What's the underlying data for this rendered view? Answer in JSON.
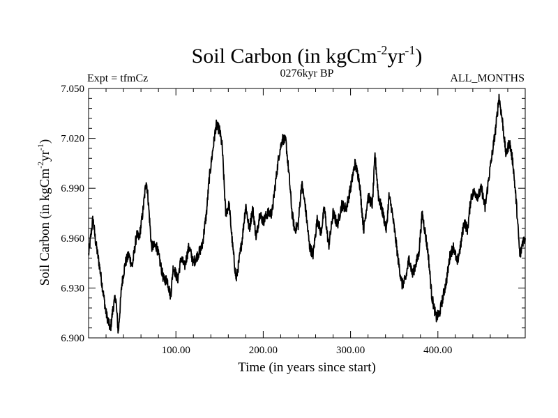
{
  "chart_data": {
    "type": "line",
    "title": "Soil Carbon (in kgCm",
    "title_sup1": "-2",
    "title_mid": "yr",
    "title_sup2": "-1",
    "title_end": ")",
    "subtitle_left": "Expt = tfmCz",
    "subtitle_center": "0276kyr BP",
    "subtitle_right": "ALL_MONTHS",
    "xlabel": "Time (in years since start)",
    "ylabel": "Soil Carbon (in kgCm",
    "ylabel_sup1": "-2",
    "ylabel_mid": "yr",
    "ylabel_sup2": "-1",
    "ylabel_end": ")",
    "xlim": [
      0,
      500
    ],
    "ylim": [
      6.9,
      7.05
    ],
    "x_ticks": [
      100,
      200,
      300,
      400
    ],
    "x_tick_labels": [
      "100.00",
      "200.00",
      "300.00",
      "400.00"
    ],
    "y_ticks": [
      6.9,
      6.93,
      6.96,
      6.99,
      7.02,
      7.05
    ],
    "y_tick_labels": [
      "6.900",
      "6.930",
      "6.960",
      "6.990",
      "7.020",
      "7.050"
    ],
    "grid": false,
    "series": [
      {
        "name": "Soil Carbon",
        "color": "#000000",
        "anchors": [
          [
            0,
            6.95
          ],
          [
            5,
            6.972
          ],
          [
            8,
            6.958
          ],
          [
            12,
            6.945
          ],
          [
            16,
            6.93
          ],
          [
            20,
            6.915
          ],
          [
            25,
            6.905
          ],
          [
            28,
            6.918
          ],
          [
            31,
            6.925
          ],
          [
            34,
            6.903
          ],
          [
            38,
            6.932
          ],
          [
            42,
            6.945
          ],
          [
            46,
            6.95
          ],
          [
            50,
            6.943
          ],
          [
            55,
            6.962
          ],
          [
            58,
            6.96
          ],
          [
            62,
            6.975
          ],
          [
            66,
            6.995
          ],
          [
            68,
            6.985
          ],
          [
            72,
            6.955
          ],
          [
            78,
            6.955
          ],
          [
            82,
            6.945
          ],
          [
            86,
            6.935
          ],
          [
            90,
            6.935
          ],
          [
            94,
            6.925
          ],
          [
            97,
            6.943
          ],
          [
            102,
            6.935
          ],
          [
            106,
            6.948
          ],
          [
            110,
            6.943
          ],
          [
            115,
            6.955
          ],
          [
            120,
            6.945
          ],
          [
            125,
            6.95
          ],
          [
            130,
            6.955
          ],
          [
            135,
            6.975
          ],
          [
            138,
            6.995
          ],
          [
            142,
            7.012
          ],
          [
            146,
            7.028
          ],
          [
            150,
            7.025
          ],
          [
            153,
            7.015
          ],
          [
            157,
            6.975
          ],
          [
            161,
            6.98
          ],
          [
            165,
            6.955
          ],
          [
            169,
            6.935
          ],
          [
            172,
            6.945
          ],
          [
            176,
            6.96
          ],
          [
            180,
            6.98
          ],
          [
            184,
            6.965
          ],
          [
            188,
            6.978
          ],
          [
            192,
            6.96
          ],
          [
            196,
            6.975
          ],
          [
            200,
            6.97
          ],
          [
            205,
            6.975
          ],
          [
            210,
            6.975
          ],
          [
            214,
            6.993
          ],
          [
            218,
            7.01
          ],
          [
            222,
            7.02
          ],
          [
            226,
            7.018
          ],
          [
            230,
            6.995
          ],
          [
            233,
            6.975
          ],
          [
            236,
            6.965
          ],
          [
            240,
            6.968
          ],
          [
            244,
            6.993
          ],
          [
            248,
            6.98
          ],
          [
            253,
            6.955
          ],
          [
            257,
            6.95
          ],
          [
            262,
            6.972
          ],
          [
            266,
            6.963
          ],
          [
            270,
            6.978
          ],
          [
            275,
            6.955
          ],
          [
            280,
            6.975
          ],
          [
            285,
            6.968
          ],
          [
            290,
            6.98
          ],
          [
            295,
            6.978
          ],
          [
            300,
            6.99
          ],
          [
            305,
            7.005
          ],
          [
            310,
            6.995
          ],
          [
            315,
            6.965
          ],
          [
            320,
            6.985
          ],
          [
            325,
            6.98
          ],
          [
            328,
            7.01
          ],
          [
            332,
            6.985
          ],
          [
            337,
            6.975
          ],
          [
            341,
            6.965
          ],
          [
            344,
            6.985
          ],
          [
            347,
            6.978
          ],
          [
            351,
            6.962
          ],
          [
            355,
            6.945
          ],
          [
            359,
            6.932
          ],
          [
            363,
            6.935
          ],
          [
            367,
            6.948
          ],
          [
            371,
            6.938
          ],
          [
            375,
            6.945
          ],
          [
            378,
            6.95
          ],
          [
            382,
            6.975
          ],
          [
            385,
            6.965
          ],
          [
            389,
            6.95
          ],
          [
            393,
            6.925
          ],
          [
            398,
            6.912
          ],
          [
            402,
            6.915
          ],
          [
            406,
            6.925
          ],
          [
            410,
            6.935
          ],
          [
            414,
            6.95
          ],
          [
            418,
            6.955
          ],
          [
            422,
            6.945
          ],
          [
            426,
            6.955
          ],
          [
            430,
            6.97
          ],
          [
            434,
            6.965
          ],
          [
            438,
            6.985
          ],
          [
            442,
            6.988
          ],
          [
            446,
            6.985
          ],
          [
            450,
            6.99
          ],
          [
            454,
            6.978
          ],
          [
            458,
            6.995
          ],
          [
            462,
            7.01
          ],
          [
            466,
            7.025
          ],
          [
            470,
            7.045
          ],
          [
            474,
            7.03
          ],
          [
            478,
            7.01
          ],
          [
            482,
            7.018
          ],
          [
            486,
            7.005
          ],
          [
            490,
            6.98
          ],
          [
            494,
            6.948
          ],
          [
            497,
            6.958
          ],
          [
            500,
            6.96
          ]
        ]
      }
    ]
  }
}
